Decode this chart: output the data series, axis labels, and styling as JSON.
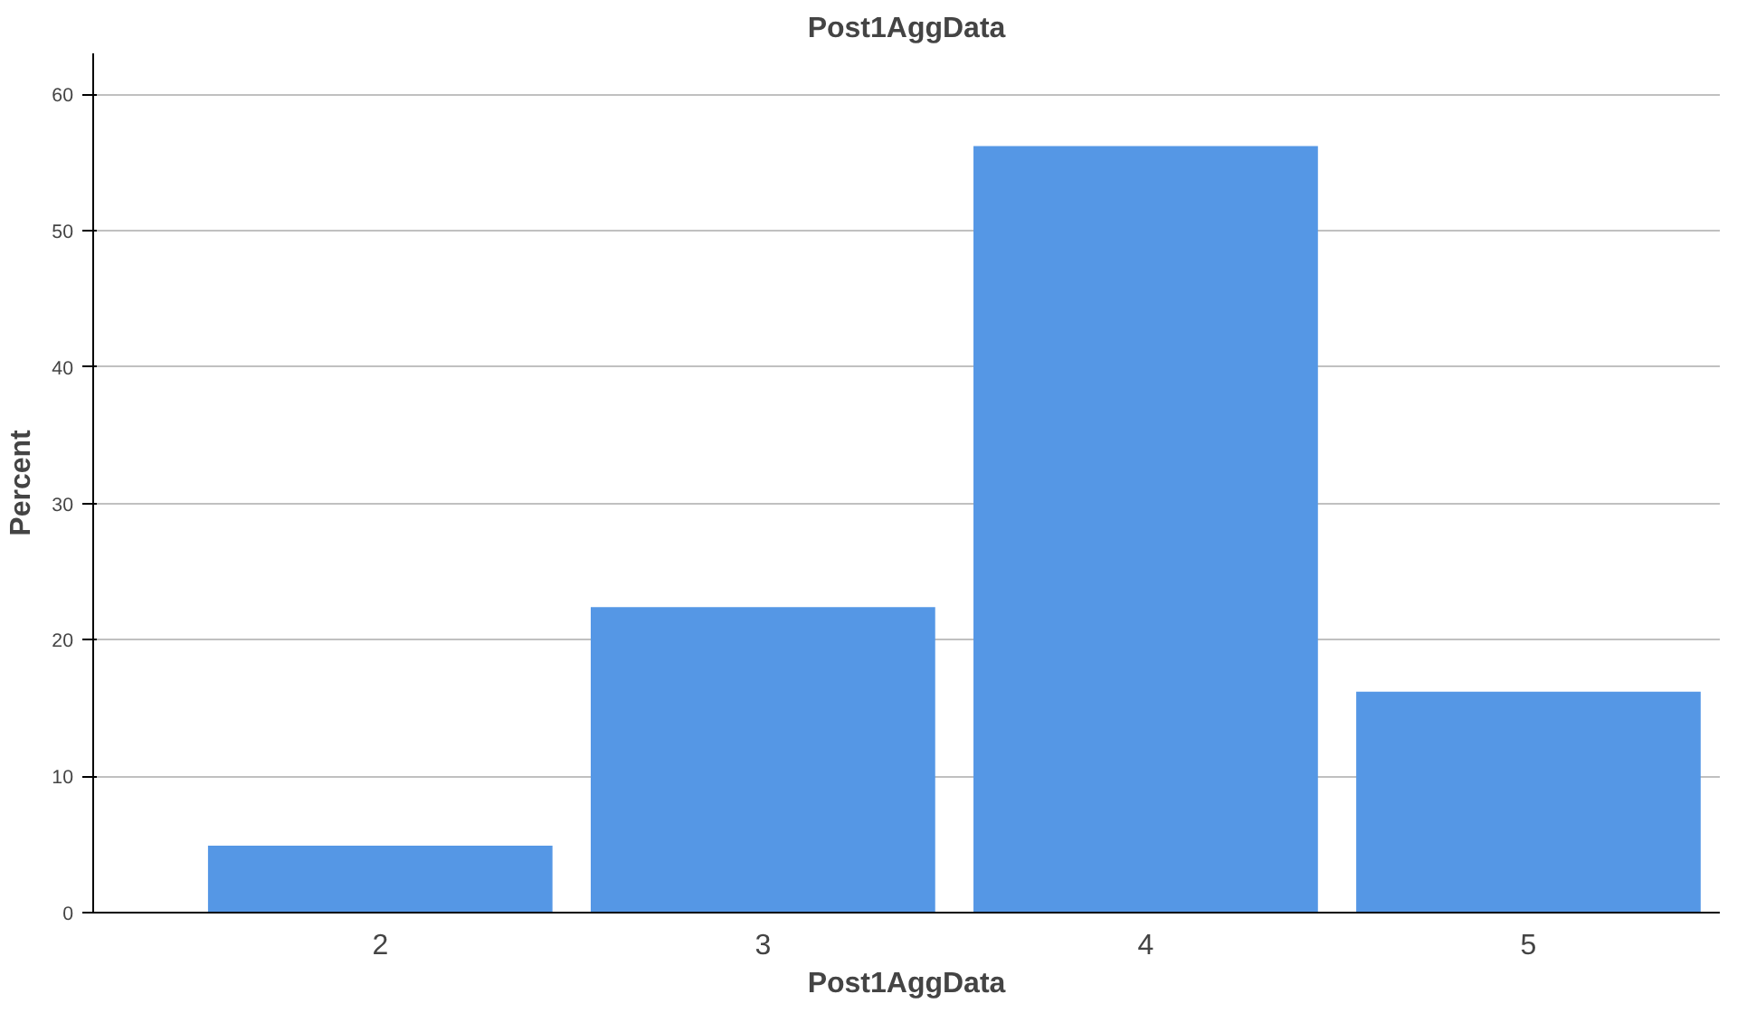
{
  "chart_data": {
    "type": "bar",
    "title": "Post1AggData",
    "xlabel": "Post1AggData",
    "ylabel": "Percent",
    "categories": [
      "2",
      "3",
      "4",
      "5"
    ],
    "values": [
      4.9,
      22.4,
      56.2,
      16.2
    ],
    "color": "#5597e5",
    "ylim": [
      0,
      63
    ],
    "yticks": [
      0,
      10,
      20,
      30,
      40,
      50,
      60
    ],
    "grid": "y"
  }
}
